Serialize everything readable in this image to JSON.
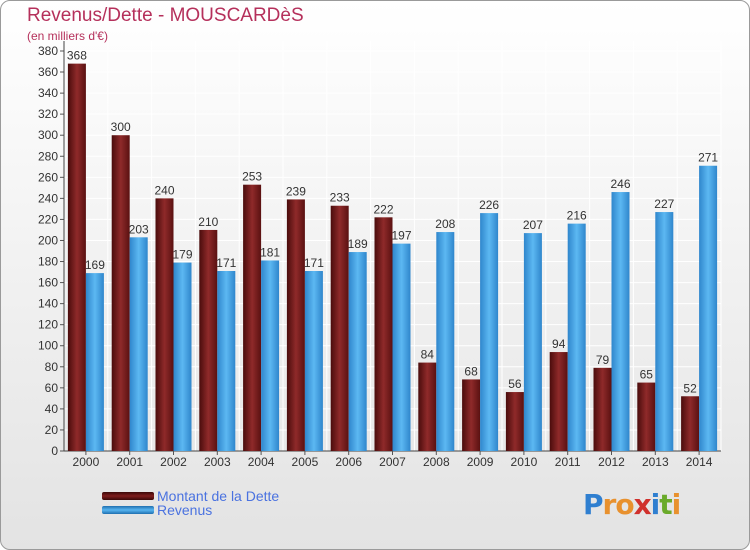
{
  "header": {
    "title": "Revenus/Dette - MOUSCARDèS",
    "subtitle": "(en milliers d'€)"
  },
  "legend": {
    "debt_label": "Montant de la Dette",
    "revenue_label": "Revenus"
  },
  "logo": {
    "text": "Proxiti",
    "letters": [
      "P",
      "r",
      "o",
      "x",
      "i",
      "t",
      "i"
    ],
    "colors": [
      "#2f7fd0",
      "#e8912e",
      "#e8912e",
      "#d0312d",
      "#2f7fd0",
      "#6aaa2a",
      "#e8912e"
    ]
  },
  "colors": {
    "debt": "#7e1d1d",
    "revenue": "#3ea1e6",
    "title": "#b5305b",
    "grid": "#ffffff"
  },
  "chart_data": {
    "type": "bar",
    "categories": [
      "2000",
      "2001",
      "2002",
      "2003",
      "2004",
      "2005",
      "2006",
      "2007",
      "2008",
      "2009",
      "2010",
      "2011",
      "2012",
      "2013",
      "2014"
    ],
    "series": [
      {
        "name": "Montant de la Dette",
        "values": [
          368,
          300,
          240,
          210,
          253,
          239,
          233,
          222,
          84,
          68,
          56,
          94,
          79,
          65,
          52
        ]
      },
      {
        "name": "Revenus",
        "values": [
          169,
          203,
          179,
          171,
          181,
          171,
          189,
          197,
          208,
          226,
          207,
          216,
          246,
          227,
          271
        ]
      }
    ],
    "ylim": [
      0,
      380
    ],
    "ytick_step": 20,
    "grid": true,
    "legend_position": "bottom-left"
  }
}
